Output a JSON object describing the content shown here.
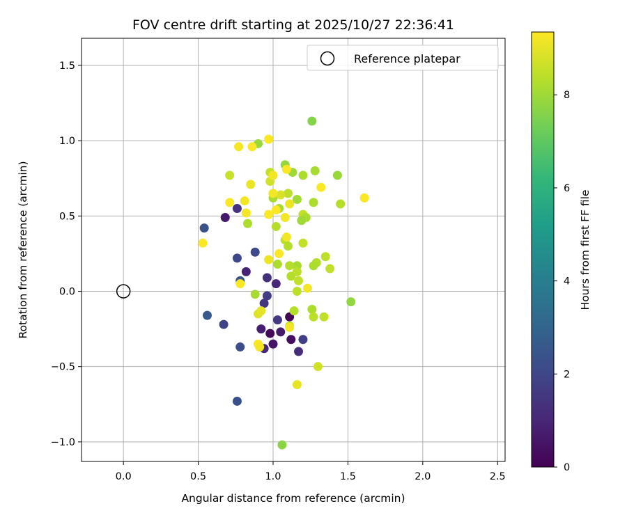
{
  "chart_data": {
    "type": "scatter",
    "title": "FOV centre drift starting at 2025/10/27 22:36:41",
    "xlabel": "Angular distance from reference (arcmin)",
    "ylabel": "Rotation from reference (arcmin)",
    "xlim": [
      -0.28,
      2.55
    ],
    "ylim": [
      -1.13,
      1.68
    ],
    "xticks": [
      0.0,
      0.5,
      1.0,
      1.5,
      2.0,
      2.5
    ],
    "xtick_labels": [
      "0.0",
      "0.5",
      "1.0",
      "1.5",
      "2.0",
      "2.5"
    ],
    "yticks": [
      -1.0,
      -0.5,
      0.0,
      0.5,
      1.0,
      1.5
    ],
    "ytick_labels": [
      "−1.0",
      "−0.5",
      "0.0",
      "0.5",
      "1.0",
      "1.5"
    ],
    "grid": true,
    "legend": {
      "location": "upper right",
      "label": "Reference platepar"
    },
    "reference_point": {
      "x": 0.0,
      "y": 0.0
    },
    "colorbar": {
      "label": "Hours from first FF file",
      "range": [
        0,
        9.35
      ],
      "ticks": [
        0,
        2,
        4,
        6,
        8
      ],
      "tick_labels": [
        "0",
        "2",
        "4",
        "6",
        "8"
      ],
      "colormap_stops": [
        "#440154",
        "#482878",
        "#3e4989",
        "#31688e",
        "#26828e",
        "#1f9e89",
        "#35b779",
        "#6ece58",
        "#b5de2b",
        "#fde725"
      ]
    },
    "points": [
      {
        "x": 1.11,
        "y": -0.17,
        "h": 0.1
      },
      {
        "x": 0.98,
        "y": -0.28,
        "h": 0.2
      },
      {
        "x": 1.12,
        "y": -0.32,
        "h": 0.35
      },
      {
        "x": 1.0,
        "y": -0.35,
        "h": 0.5
      },
      {
        "x": 0.68,
        "y": 0.49,
        "h": 0.6
      },
      {
        "x": 1.05,
        "y": -0.27,
        "h": 0.7
      },
      {
        "x": 0.92,
        "y": -0.25,
        "h": 0.8
      },
      {
        "x": 0.82,
        "y": 0.13,
        "h": 0.9
      },
      {
        "x": 1.02,
        "y": 0.05,
        "h": 1.0
      },
      {
        "x": 0.94,
        "y": -0.38,
        "h": 1.1
      },
      {
        "x": 1.17,
        "y": -0.4,
        "h": 1.2
      },
      {
        "x": 0.96,
        "y": 0.09,
        "h": 1.3
      },
      {
        "x": 0.76,
        "y": 0.55,
        "h": 1.4
      },
      {
        "x": 0.94,
        "y": -0.08,
        "h": 1.5
      },
      {
        "x": 1.03,
        "y": -0.19,
        "h": 1.6
      },
      {
        "x": 0.96,
        "y": -0.03,
        "h": 1.7
      },
      {
        "x": 1.2,
        "y": -0.32,
        "h": 1.8
      },
      {
        "x": 0.67,
        "y": -0.22,
        "h": 1.9
      },
      {
        "x": 0.76,
        "y": 0.22,
        "h": 2.0
      },
      {
        "x": 0.88,
        "y": 0.26,
        "h": 2.1
      },
      {
        "x": 0.78,
        "y": -0.37,
        "h": 2.2
      },
      {
        "x": 0.76,
        "y": -0.73,
        "h": 2.3
      },
      {
        "x": 0.54,
        "y": 0.42,
        "h": 2.4
      },
      {
        "x": 0.78,
        "y": 0.07,
        "h": 2.5
      },
      {
        "x": 0.56,
        "y": -0.16,
        "h": 2.6
      },
      {
        "x": 1.26,
        "y": 1.13,
        "h": 7.6
      },
      {
        "x": 1.06,
        "y": -1.02,
        "h": 7.7
      },
      {
        "x": 1.08,
        "y": 0.84,
        "h": 7.8
      },
      {
        "x": 0.9,
        "y": 0.98,
        "h": 7.9
      },
      {
        "x": 1.43,
        "y": 0.77,
        "h": 7.9
      },
      {
        "x": 1.52,
        "y": -0.07,
        "h": 7.8
      },
      {
        "x": 1.13,
        "y": 0.79,
        "h": 8.0
      },
      {
        "x": 1.28,
        "y": 0.8,
        "h": 8.1
      },
      {
        "x": 1.2,
        "y": 0.77,
        "h": 8.2
      },
      {
        "x": 1.0,
        "y": 0.62,
        "h": 8.1
      },
      {
        "x": 1.16,
        "y": 0.61,
        "h": 8.0
      },
      {
        "x": 1.27,
        "y": 0.59,
        "h": 8.2
      },
      {
        "x": 1.45,
        "y": 0.58,
        "h": 8.3
      },
      {
        "x": 1.1,
        "y": 0.65,
        "h": 8.4
      },
      {
        "x": 1.2,
        "y": 0.51,
        "h": 8.5
      },
      {
        "x": 1.22,
        "y": 0.49,
        "h": 8.2
      },
      {
        "x": 1.19,
        "y": 0.47,
        "h": 8.0
      },
      {
        "x": 1.04,
        "y": 0.55,
        "h": 8.1
      },
      {
        "x": 1.02,
        "y": 0.43,
        "h": 8.3
      },
      {
        "x": 0.83,
        "y": 0.45,
        "h": 8.2
      },
      {
        "x": 1.08,
        "y": 0.34,
        "h": 8.4
      },
      {
        "x": 1.1,
        "y": 0.3,
        "h": 8.3
      },
      {
        "x": 1.2,
        "y": 0.32,
        "h": 8.5
      },
      {
        "x": 1.35,
        "y": 0.23,
        "h": 8.4
      },
      {
        "x": 1.29,
        "y": 0.19,
        "h": 8.3
      },
      {
        "x": 1.27,
        "y": 0.17,
        "h": 8.2
      },
      {
        "x": 1.38,
        "y": 0.15,
        "h": 8.5
      },
      {
        "x": 1.16,
        "y": 0.17,
        "h": 8.1
      },
      {
        "x": 1.11,
        "y": 0.17,
        "h": 8.3
      },
      {
        "x": 1.03,
        "y": 0.18,
        "h": 8.2
      },
      {
        "x": 1.16,
        "y": 0.13,
        "h": 8.4
      },
      {
        "x": 1.12,
        "y": 0.1,
        "h": 8.3
      },
      {
        "x": 1.17,
        "y": 0.07,
        "h": 8.5
      },
      {
        "x": 1.16,
        "y": 0.0,
        "h": 8.4
      },
      {
        "x": 0.88,
        "y": -0.02,
        "h": 8.1
      },
      {
        "x": 1.14,
        "y": -0.13,
        "h": 8.3
      },
      {
        "x": 1.26,
        "y": -0.12,
        "h": 8.2
      },
      {
        "x": 1.27,
        "y": -0.17,
        "h": 8.4
      },
      {
        "x": 1.34,
        "y": -0.17,
        "h": 8.5
      },
      {
        "x": 1.11,
        "y": -0.23,
        "h": 8.6
      },
      {
        "x": 1.3,
        "y": -0.5,
        "h": 8.7
      },
      {
        "x": 0.71,
        "y": 0.77,
        "h": 8.6
      },
      {
        "x": 0.98,
        "y": 0.79,
        "h": 8.5
      },
      {
        "x": 0.98,
        "y": 0.73,
        "h": 8.7
      },
      {
        "x": 1.05,
        "y": 0.64,
        "h": 8.8
      },
      {
        "x": 0.9,
        "y": -0.15,
        "h": 8.9
      },
      {
        "x": 0.92,
        "y": -0.13,
        "h": 9.0
      },
      {
        "x": 1.16,
        "y": -0.62,
        "h": 9.0
      },
      {
        "x": 0.97,
        "y": 1.01,
        "h": 9.3
      },
      {
        "x": 0.77,
        "y": 0.96,
        "h": 9.2
      },
      {
        "x": 0.86,
        "y": 0.96,
        "h": 9.3
      },
      {
        "x": 1.0,
        "y": 0.77,
        "h": 9.2
      },
      {
        "x": 0.85,
        "y": 0.71,
        "h": 9.1
      },
      {
        "x": 1.32,
        "y": 0.69,
        "h": 9.3
      },
      {
        "x": 1.09,
        "y": 0.81,
        "h": 9.3
      },
      {
        "x": 1.61,
        "y": 0.62,
        "h": 9.3
      },
      {
        "x": 1.0,
        "y": 0.65,
        "h": 9.2
      },
      {
        "x": 0.71,
        "y": 0.59,
        "h": 9.3
      },
      {
        "x": 0.81,
        "y": 0.6,
        "h": 9.2
      },
      {
        "x": 1.11,
        "y": 0.58,
        "h": 9.1
      },
      {
        "x": 1.02,
        "y": 0.54,
        "h": 9.3
      },
      {
        "x": 0.82,
        "y": 0.52,
        "h": 9.2
      },
      {
        "x": 0.97,
        "y": 0.51,
        "h": 9.3
      },
      {
        "x": 1.08,
        "y": 0.49,
        "h": 9.2
      },
      {
        "x": 0.53,
        "y": 0.32,
        "h": 9.3
      },
      {
        "x": 1.09,
        "y": 0.36,
        "h": 9.2
      },
      {
        "x": 1.04,
        "y": 0.25,
        "h": 9.3
      },
      {
        "x": 0.97,
        "y": 0.21,
        "h": 9.1
      },
      {
        "x": 1.23,
        "y": 0.02,
        "h": 9.2
      },
      {
        "x": 0.78,
        "y": 0.05,
        "h": 9.3
      },
      {
        "x": 1.11,
        "y": -0.24,
        "h": 9.2
      },
      {
        "x": 0.9,
        "y": -0.35,
        "h": 9.3
      },
      {
        "x": 0.91,
        "y": -0.37,
        "h": 9.2
      }
    ]
  }
}
